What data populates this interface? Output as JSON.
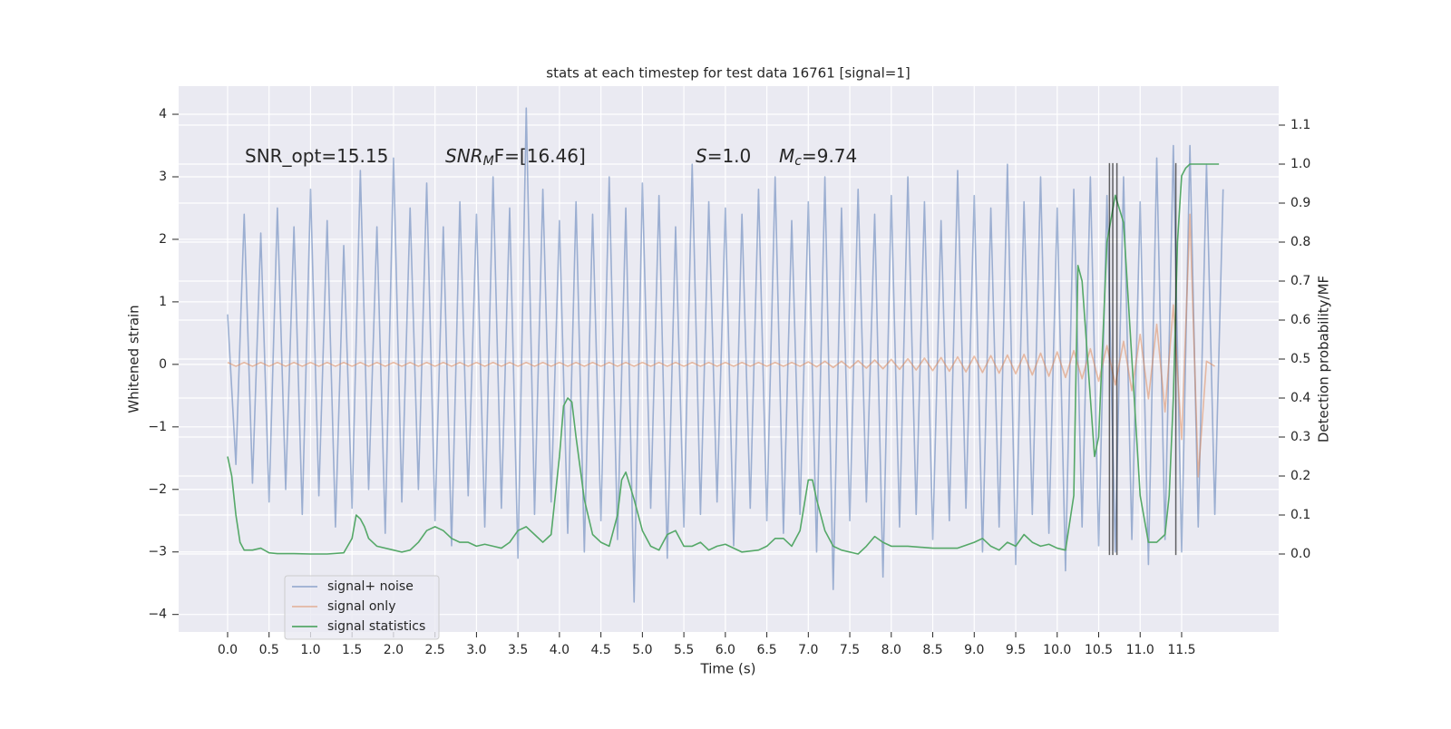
{
  "chart_data": {
    "type": "line",
    "title": "stats at each timestep for test data 16761 [signal=1]",
    "xlabel": "Time (s)",
    "ylabel": "Whitened strain",
    "y2label": "Detection probability/MF",
    "annotations": [
      [
        {
          "text": "SNR_opt=15.15",
          "style": "normal"
        }
      ],
      [
        {
          "text": "SNR",
          "style": "italic"
        },
        {
          "text": "M",
          "style": "subscript"
        },
        {
          "text": "F=[16.46]",
          "style": "normal"
        }
      ],
      [
        {
          "text": "S",
          "style": "italic"
        },
        {
          "text": "=1.0",
          "style": "normal"
        }
      ],
      [
        {
          "text": "M",
          "style": "italic"
        },
        {
          "text": "c",
          "style": "subscript"
        },
        {
          "text": "=9.74",
          "style": "normal"
        }
      ]
    ],
    "xlim": [
      -0.59,
      12.67
    ],
    "ylim": [
      -4.28,
      4.45
    ],
    "y2lim": [
      -0.2,
      1.2
    ],
    "xticks": [
      {
        "value": 0,
        "label": "0.0"
      },
      0.5,
      {
        "value": 1,
        "label": "1.0"
      },
      1.5,
      {
        "value": 2,
        "label": "2.0"
      },
      2.5,
      {
        "value": 3,
        "label": "3.0"
      },
      3.5,
      {
        "value": 4,
        "label": "4.0"
      },
      4.5,
      {
        "value": 5,
        "label": "5.0"
      },
      5.5,
      {
        "value": 6,
        "label": "6.0"
      },
      6.5,
      {
        "value": 7,
        "label": "7.0"
      },
      7.5,
      {
        "value": 8,
        "label": "8.0"
      },
      8.5,
      {
        "value": 9,
        "label": "9.0"
      },
      9.5,
      {
        "value": 10,
        "label": "10.0"
      },
      10.5,
      {
        "value": 11,
        "label": "11.0"
      },
      11.5
    ],
    "yticks": [
      {
        "value": -4,
        "label": "−4"
      },
      {
        "value": -3,
        "label": "−3"
      },
      {
        "value": -2,
        "label": "−2"
      },
      {
        "value": -1,
        "label": "−1"
      },
      0,
      1,
      2,
      3,
      4
    ],
    "y2ticks": [
      {
        "value": 0,
        "label": "0.0"
      },
      0.1,
      0.2,
      0.3,
      0.4,
      0.5,
      0.6,
      0.7,
      0.8,
      0.9,
      {
        "value": 1,
        "label": "1.0"
      },
      1.1
    ],
    "grid": true,
    "legend": "lower left",
    "series": [
      {
        "name": "signal+ noise",
        "color": "#4c72b0",
        "alpha": 0.5,
        "x": [
          0.0,
          0.1,
          0.2,
          0.3,
          0.4,
          0.5,
          0.6,
          0.7,
          0.8,
          0.9,
          1.0,
          1.1,
          1.2,
          1.3,
          1.4,
          1.5,
          1.6,
          1.7,
          1.8,
          1.9,
          2.0,
          2.1,
          2.2,
          2.3,
          2.4,
          2.5,
          2.6,
          2.7,
          2.8,
          2.9,
          3.0,
          3.1,
          3.2,
          3.3,
          3.4,
          3.5,
          3.6,
          3.7,
          3.8,
          3.9,
          4.0,
          4.1,
          4.2,
          4.3,
          4.4,
          4.5,
          4.6,
          4.7,
          4.8,
          4.9,
          5.0,
          5.1,
          5.2,
          5.3,
          5.4,
          5.5,
          5.6,
          5.7,
          5.8,
          5.9,
          6.0,
          6.1,
          6.2,
          6.3,
          6.4,
          6.5,
          6.6,
          6.7,
          6.8,
          6.9,
          7.0,
          7.1,
          7.2,
          7.3,
          7.4,
          7.5,
          7.6,
          7.7,
          7.8,
          7.9,
          8.0,
          8.1,
          8.2,
          8.3,
          8.4,
          8.5,
          8.6,
          8.7,
          8.8,
          8.9,
          9.0,
          9.1,
          9.2,
          9.3,
          9.4,
          9.5,
          9.6,
          9.7,
          9.8,
          9.9,
          10.0,
          10.1,
          10.2,
          10.3,
          10.4,
          10.5,
          10.6,
          10.7,
          10.8,
          10.9,
          11.0,
          11.1,
          11.2,
          11.3,
          11.4,
          11.5,
          11.6,
          11.7,
          11.8,
          11.9,
          12.0
        ],
        "values": [
          0.8,
          -1.6,
          2.4,
          -1.9,
          2.1,
          -2.2,
          2.5,
          -2.0,
          2.2,
          -2.4,
          2.8,
          -2.1,
          2.3,
          -2.6,
          1.9,
          -2.3,
          3.1,
          -2.0,
          2.2,
          -2.7,
          3.3,
          -2.2,
          2.5,
          -2.0,
          2.9,
          -2.5,
          2.2,
          -2.9,
          2.6,
          -2.1,
          2.4,
          -2.6,
          3.0,
          -2.3,
          2.5,
          -3.1,
          4.1,
          -2.4,
          2.8,
          -2.2,
          2.3,
          -2.7,
          2.6,
          -3.0,
          2.4,
          -2.5,
          3.0,
          -2.8,
          2.5,
          -3.8,
          2.9,
          -2.3,
          2.7,
          -3.1,
          2.2,
          -2.6,
          3.2,
          -2.4,
          2.6,
          -2.2,
          2.5,
          -2.9,
          2.4,
          -2.3,
          2.8,
          -2.5,
          3.0,
          -2.7,
          2.3,
          -2.4,
          2.6,
          -3.0,
          3.0,
          -3.6,
          2.5,
          -2.5,
          2.8,
          -2.2,
          2.4,
          -3.4,
          2.7,
          -2.6,
          3.0,
          -2.4,
          2.6,
          -2.8,
          2.3,
          -2.5,
          3.1,
          -2.3,
          2.7,
          -3.0,
          2.5,
          -2.6,
          3.2,
          -3.2,
          2.6,
          -2.4,
          3.0,
          -2.7,
          2.5,
          -3.3,
          2.8,
          -2.6,
          3.0,
          -2.9,
          2.7,
          -3.0,
          3.0,
          -2.8,
          2.6,
          -3.2,
          3.3,
          -2.8,
          3.5,
          -3.0,
          3.5,
          -2.6,
          3.2,
          -2.4,
          2.8
        ]
      },
      {
        "name": "signal only",
        "color": "#dd8452",
        "alpha": 0.5,
        "x": [
          0.0,
          0.1,
          0.2,
          0.3,
          0.4,
          0.5,
          0.6,
          0.7,
          0.8,
          0.9,
          1.0,
          1.1,
          1.2,
          1.3,
          1.4,
          1.5,
          1.6,
          1.7,
          1.8,
          1.9,
          2.0,
          2.1,
          2.2,
          2.3,
          2.4,
          2.5,
          2.6,
          2.7,
          2.8,
          2.9,
          3.0,
          3.1,
          3.2,
          3.3,
          3.4,
          3.5,
          3.6,
          3.7,
          3.8,
          3.9,
          4.0,
          4.1,
          4.2,
          4.3,
          4.4,
          4.5,
          4.6,
          4.7,
          4.8,
          4.9,
          5.0,
          5.1,
          5.2,
          5.3,
          5.4,
          5.5,
          5.6,
          5.7,
          5.8,
          5.9,
          6.0,
          6.1,
          6.2,
          6.3,
          6.4,
          6.5,
          6.6,
          6.7,
          6.8,
          6.9,
          7.0,
          7.1,
          7.2,
          7.3,
          7.4,
          7.5,
          7.6,
          7.7,
          7.8,
          7.9,
          8.0,
          8.1,
          8.2,
          8.3,
          8.4,
          8.5,
          8.6,
          8.7,
          8.8,
          8.9,
          9.0,
          9.1,
          9.2,
          9.3,
          9.4,
          9.5,
          9.6,
          9.7,
          9.8,
          9.9,
          10.0,
          10.1,
          10.2,
          10.3,
          10.4,
          10.5,
          10.6,
          10.7,
          10.8,
          10.9,
          11.0,
          11.1,
          11.2,
          11.3,
          11.4,
          11.5,
          11.6,
          11.7,
          11.8,
          11.9
        ],
        "values": [
          0.03,
          -0.03,
          0.03,
          -0.03,
          0.03,
          -0.03,
          0.03,
          -0.03,
          0.03,
          -0.03,
          0.03,
          -0.03,
          0.03,
          -0.03,
          0.03,
          -0.03,
          0.03,
          -0.03,
          0.03,
          -0.03,
          0.03,
          -0.03,
          0.03,
          -0.03,
          0.03,
          -0.03,
          0.03,
          -0.03,
          0.03,
          -0.03,
          0.03,
          -0.03,
          0.03,
          -0.03,
          0.03,
          -0.03,
          0.03,
          -0.03,
          0.03,
          -0.03,
          0.03,
          -0.03,
          0.03,
          -0.03,
          0.03,
          -0.03,
          0.03,
          -0.03,
          0.03,
          -0.03,
          0.03,
          -0.03,
          0.03,
          -0.03,
          0.03,
          -0.03,
          0.03,
          -0.03,
          0.03,
          -0.03,
          0.03,
          -0.03,
          0.03,
          -0.03,
          0.03,
          -0.03,
          0.03,
          -0.03,
          0.03,
          -0.03,
          0.04,
          -0.04,
          0.05,
          -0.05,
          0.05,
          -0.06,
          0.06,
          -0.06,
          0.07,
          -0.07,
          0.08,
          -0.08,
          0.09,
          -0.09,
          0.1,
          -0.1,
          0.11,
          -0.11,
          0.12,
          -0.12,
          0.13,
          -0.13,
          0.14,
          -0.14,
          0.15,
          -0.15,
          0.16,
          -0.17,
          0.18,
          -0.19,
          0.2,
          -0.21,
          0.22,
          -0.23,
          0.25,
          -0.27,
          0.3,
          -0.33,
          0.37,
          -0.42,
          0.48,
          -0.55,
          0.64,
          -0.76,
          0.95,
          -1.2,
          2.4,
          -1.8,
          0.05,
          -0.03
        ]
      },
      {
        "name": "signal statistics",
        "color": "#55a868",
        "alpha": 1,
        "axis": "y2",
        "x": [
          0.0,
          0.05,
          0.1,
          0.15,
          0.2,
          0.3,
          0.4,
          0.5,
          0.6,
          0.8,
          1.0,
          1.2,
          1.4,
          1.5,
          1.55,
          1.6,
          1.65,
          1.7,
          1.8,
          2.0,
          2.1,
          2.2,
          2.3,
          2.4,
          2.5,
          2.6,
          2.7,
          2.8,
          2.9,
          3.0,
          3.1,
          3.2,
          3.3,
          3.4,
          3.5,
          3.6,
          3.7,
          3.8,
          3.9,
          4.0,
          4.05,
          4.1,
          4.15,
          4.2,
          4.3,
          4.4,
          4.5,
          4.6,
          4.7,
          4.75,
          4.8,
          4.9,
          5.0,
          5.1,
          5.2,
          5.3,
          5.4,
          5.5,
          5.6,
          5.7,
          5.8,
          5.9,
          6.0,
          6.2,
          6.4,
          6.5,
          6.6,
          6.7,
          6.8,
          6.9,
          7.0,
          7.05,
          7.1,
          7.2,
          7.3,
          7.4,
          7.6,
          7.7,
          7.8,
          7.9,
          8.0,
          8.2,
          8.5,
          8.8,
          9.0,
          9.1,
          9.2,
          9.3,
          9.4,
          9.5,
          9.6,
          9.7,
          9.8,
          9.9,
          10.0,
          10.1,
          10.2,
          10.25,
          10.3,
          10.4,
          10.45,
          10.5,
          10.6,
          10.7,
          10.8,
          10.9,
          11.0,
          11.1,
          11.2,
          11.3,
          11.35,
          11.4,
          11.45,
          11.5,
          11.55,
          11.6,
          11.7,
          11.8,
          11.9,
          11.95
        ],
        "values": [
          0.25,
          0.2,
          0.1,
          0.03,
          0.01,
          0.01,
          0.015,
          0.003,
          0.001,
          0.001,
          0.0,
          0.0,
          0.003,
          0.04,
          0.1,
          0.09,
          0.07,
          0.04,
          0.02,
          0.01,
          0.005,
          0.01,
          0.03,
          0.06,
          0.07,
          0.06,
          0.04,
          0.03,
          0.03,
          0.02,
          0.025,
          0.02,
          0.015,
          0.03,
          0.06,
          0.07,
          0.05,
          0.03,
          0.05,
          0.25,
          0.38,
          0.4,
          0.39,
          0.3,
          0.14,
          0.05,
          0.03,
          0.02,
          0.1,
          0.19,
          0.21,
          0.14,
          0.06,
          0.02,
          0.01,
          0.05,
          0.06,
          0.02,
          0.02,
          0.03,
          0.01,
          0.02,
          0.025,
          0.005,
          0.01,
          0.02,
          0.04,
          0.04,
          0.02,
          0.06,
          0.19,
          0.19,
          0.14,
          0.06,
          0.02,
          0.01,
          0.0,
          0.02,
          0.045,
          0.03,
          0.02,
          0.02,
          0.015,
          0.015,
          0.03,
          0.04,
          0.02,
          0.01,
          0.03,
          0.02,
          0.05,
          0.03,
          0.02,
          0.025,
          0.015,
          0.01,
          0.15,
          0.74,
          0.7,
          0.4,
          0.25,
          0.3,
          0.8,
          0.92,
          0.85,
          0.5,
          0.15,
          0.03,
          0.03,
          0.05,
          0.15,
          0.4,
          0.8,
          0.97,
          0.99,
          1.0,
          1.0,
          1.0,
          1.0,
          1.0
        ]
      }
    ],
    "vlines": {
      "x": [
        10.63,
        10.67,
        10.72,
        11.43
      ],
      "ymin": -3.05,
      "ymax": 3.22,
      "color": "#000000"
    }
  }
}
